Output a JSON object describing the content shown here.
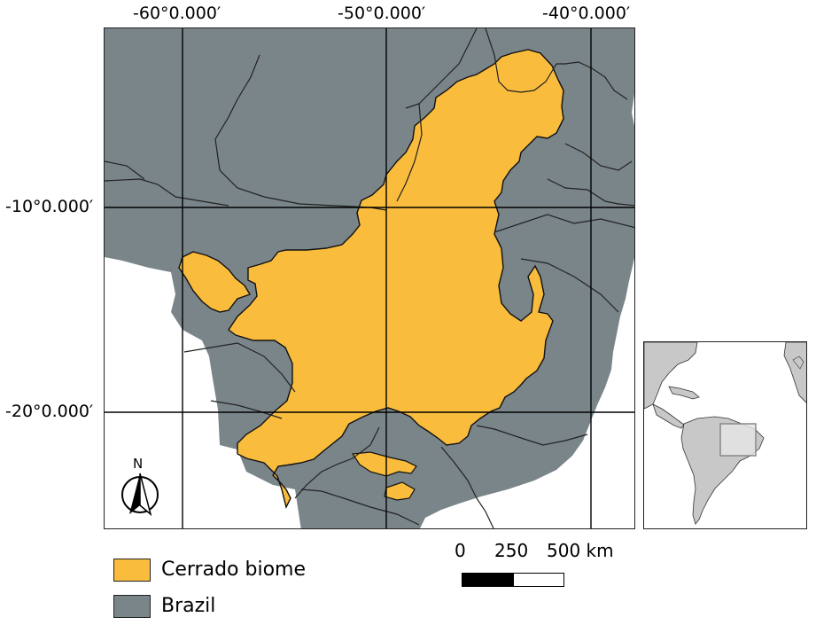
{
  "colors": {
    "cerrado": "#f9bc3d",
    "brazil": "#7a858a",
    "states_border": "#2a2a2a",
    "inset_land": "#c8c8c8",
    "inset_focus": "#e6e6e6"
  },
  "graticule": {
    "top_labels": [
      "-60°0.000′",
      "-50°0.000′",
      "-40°0.000′"
    ],
    "left_labels": [
      "-10°0.000′",
      "-20°0.000′"
    ]
  },
  "north_arrow": {
    "label": "N",
    "icon": "north-arrow-icon"
  },
  "scale_bar": {
    "ticks": [
      "0",
      "250",
      "500 km"
    ]
  },
  "legend": [
    {
      "label": "Cerrado biome",
      "color": "#f9bc3d"
    },
    {
      "label": "Brazil",
      "color": "#7a858a"
    }
  ],
  "inset": {
    "description_icon": "south-america-locator-icon"
  }
}
